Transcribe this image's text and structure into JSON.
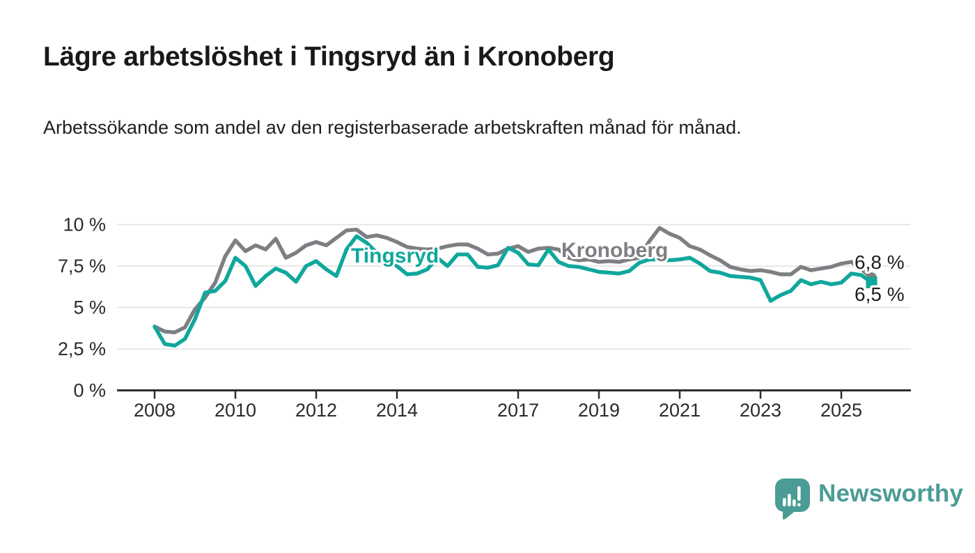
{
  "title": "Lägre arbetslöshet i Tingsryd än i Kronoberg",
  "subtitle": "Arbetssökande som andel av den registerbaserade arbetskraften månad för månad.",
  "branding": {
    "name": "Newsworthy",
    "icon": "speech-bubble-bar-chart-icon",
    "color": "#4a9c95"
  },
  "colors": {
    "tingsryd": "#10a79c",
    "kronoberg": "#7d7f83",
    "grid": "#e0e0e0",
    "axis": "#2d2d2d",
    "text": "#2b2b2b"
  },
  "chart_data": {
    "type": "line",
    "title": "Lägre arbetslöshet i Tingsryd än i Kronoberg",
    "xlabel": "",
    "ylabel": "",
    "unit": "%",
    "grid": true,
    "legend": "inline-labels",
    "x_start": 2008,
    "x_step": 0.25,
    "x_end": 2025.75,
    "ylim": [
      0,
      10.5
    ],
    "y_axis": {
      "values": [
        0,
        2.5,
        5,
        7.5,
        10
      ],
      "labels": [
        "0 %",
        "2,5 %",
        "5 %",
        "7,5 %",
        "10 %"
      ]
    },
    "x_axis": {
      "tick_years": [
        2008,
        2010,
        2012,
        2014,
        2017,
        2019,
        2021,
        2023,
        2025
      ]
    },
    "series": [
      {
        "id": "kronoberg",
        "name": "Kronoberg",
        "color": "#7d7f83",
        "end_label": "6,8 %",
        "end_value": 6.8,
        "end_marker": "circle",
        "values": [
          3.85,
          3.55,
          3.5,
          3.8,
          4.9,
          5.6,
          6.5,
          8.1,
          9.05,
          8.4,
          8.75,
          8.5,
          9.15,
          8.0,
          8.3,
          8.75,
          8.95,
          8.75,
          9.2,
          9.65,
          9.7,
          9.25,
          9.35,
          9.2,
          8.95,
          8.65,
          8.55,
          8.5,
          8.55,
          8.7,
          8.8,
          8.8,
          8.55,
          8.2,
          8.25,
          8.55,
          8.7,
          8.35,
          8.55,
          8.6,
          8.5,
          8.0,
          7.85,
          7.9,
          7.75,
          7.8,
          7.75,
          7.9,
          8.0,
          9.0,
          9.8,
          9.45,
          9.2,
          8.7,
          8.5,
          8.15,
          7.85,
          7.45,
          7.3,
          7.2,
          7.25,
          7.15,
          7.0,
          7.0,
          7.45,
          7.25,
          7.35,
          7.45,
          7.65,
          7.75,
          7.3,
          6.8
        ]
      },
      {
        "id": "tingsryd",
        "name": "Tingsryd",
        "color": "#10a79c",
        "end_label": "6,5 %",
        "end_value": 6.5,
        "end_marker": "square",
        "values": [
          3.85,
          2.8,
          2.7,
          3.1,
          4.3,
          5.9,
          6.0,
          6.6,
          8.0,
          7.5,
          6.3,
          6.9,
          7.35,
          7.1,
          6.55,
          7.5,
          7.8,
          7.3,
          6.9,
          8.5,
          9.3,
          8.9,
          8.3,
          7.9,
          7.5,
          7.0,
          7.05,
          7.3,
          8.0,
          7.5,
          8.2,
          8.2,
          7.45,
          7.4,
          7.55,
          8.6,
          8.3,
          7.6,
          7.55,
          8.5,
          7.75,
          7.5,
          7.45,
          7.3,
          7.15,
          7.1,
          7.05,
          7.2,
          7.7,
          7.9,
          7.9,
          7.85,
          7.9,
          8.0,
          7.65,
          7.2,
          7.1,
          6.9,
          6.85,
          6.8,
          6.65,
          5.4,
          5.75,
          6.0,
          6.65,
          6.4,
          6.55,
          6.4,
          6.5,
          7.05,
          6.95,
          6.5
        ]
      }
    ]
  }
}
